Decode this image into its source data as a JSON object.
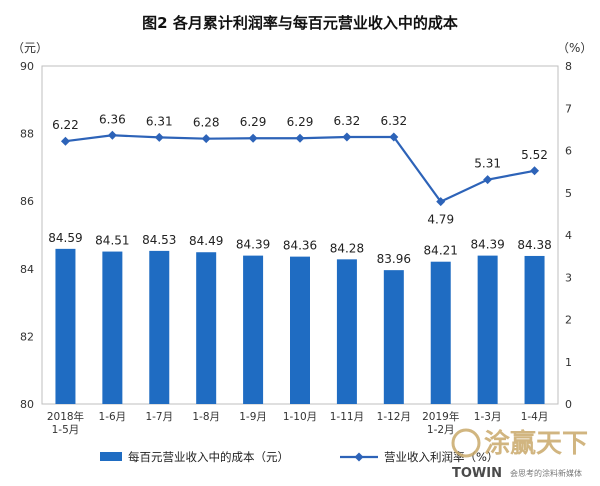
{
  "chart_data": {
    "type": "bar",
    "title": "图2  各月累计利润率与每百元营业收入中的成本",
    "left_unit": "（元）",
    "right_unit": "（%）",
    "categories": [
      [
        "2018年",
        "1-5月"
      ],
      [
        "1-6月"
      ],
      [
        "1-7月"
      ],
      [
        "1-8月"
      ],
      [
        "1-9月"
      ],
      [
        "1-10月"
      ],
      [
        "1-11月"
      ],
      [
        "1-12月"
      ],
      [
        "2019年",
        "1-2月"
      ],
      [
        "1-3月"
      ],
      [
        "1-4月"
      ]
    ],
    "y_left": {
      "min": 80,
      "max": 90,
      "step": 2
    },
    "y_right": {
      "min": 0,
      "max": 8,
      "step": 1
    },
    "series": [
      {
        "name": "每百元营业收入中的成本（元）",
        "type": "bar",
        "axis": "left",
        "color": "#1f6cc2",
        "values": [
          84.59,
          84.51,
          84.53,
          84.49,
          84.39,
          84.36,
          84.28,
          83.96,
          84.21,
          84.39,
          84.38
        ],
        "labels": [
          "84.59",
          "84.51",
          "84.53",
          "84.49",
          "84.39",
          "84.36",
          "84.28",
          "83.96",
          "84.21",
          "84.39",
          "84.38"
        ]
      },
      {
        "name": "营业收入利润率（%）",
        "type": "line",
        "axis": "right",
        "color": "#2d63b8",
        "values": [
          6.22,
          6.36,
          6.31,
          6.28,
          6.29,
          6.29,
          6.32,
          6.32,
          4.79,
          5.31,
          5.52
        ],
        "labels": [
          "6.22",
          "6.36",
          "6.31",
          "6.28",
          "6.29",
          "6.29",
          "6.32",
          "6.32",
          "4.79",
          "5.31",
          "5.52"
        ]
      }
    ],
    "legend_position": "bottom"
  },
  "watermark": {
    "main_text": "涂赢天下",
    "brand": "TOWIN",
    "tagline": "会思考的涂料新媒体"
  }
}
